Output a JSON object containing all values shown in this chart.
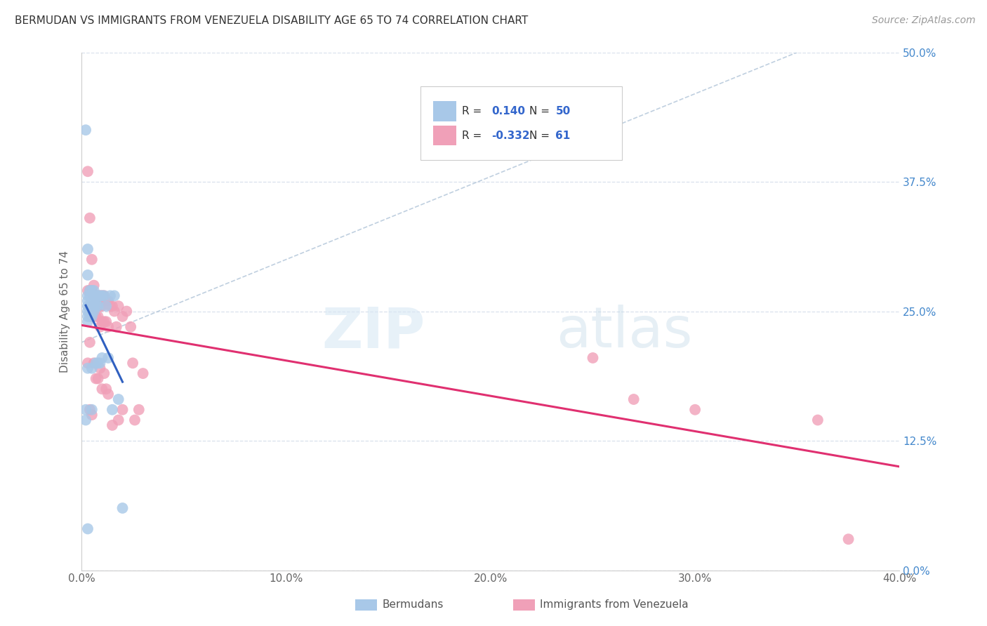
{
  "title": "BERMUDAN VS IMMIGRANTS FROM VENEZUELA DISABILITY AGE 65 TO 74 CORRELATION CHART",
  "source": "Source: ZipAtlas.com",
  "ylabel": "Disability Age 65 to 74",
  "legend_label_blue": "Bermudans",
  "legend_label_pink": "Immigrants from Venezuela",
  "blue_color": "#a8c8e8",
  "pink_color": "#f0a0b8",
  "blue_line_color": "#3060c0",
  "pink_line_color": "#e03070",
  "dashed_line_color": "#b0c4d8",
  "r_blue": "0.140",
  "n_blue": "50",
  "r_pink": "-0.332",
  "n_pink": "61",
  "x_min": 0.0,
  "x_max": 0.4,
  "y_min": 0.0,
  "y_max": 0.5,
  "grid_color": "#d8e0ec",
  "background_color": "#ffffff",
  "blue_scatter_x": [
    0.002,
    0.002,
    0.003,
    0.003,
    0.003,
    0.003,
    0.003,
    0.003,
    0.003,
    0.003,
    0.003,
    0.004,
    0.004,
    0.004,
    0.004,
    0.004,
    0.005,
    0.005,
    0.005,
    0.005,
    0.005,
    0.005,
    0.005,
    0.005,
    0.006,
    0.006,
    0.006,
    0.006,
    0.006,
    0.007,
    0.007,
    0.007,
    0.007,
    0.008,
    0.008,
    0.008,
    0.009,
    0.009,
    0.01,
    0.01,
    0.011,
    0.012,
    0.013,
    0.014,
    0.015,
    0.016,
    0.018,
    0.02,
    0.002,
    0.003
  ],
  "blue_scatter_y": [
    0.425,
    0.145,
    0.31,
    0.285,
    0.265,
    0.26,
    0.255,
    0.25,
    0.245,
    0.24,
    0.195,
    0.27,
    0.265,
    0.255,
    0.25,
    0.245,
    0.27,
    0.265,
    0.26,
    0.255,
    0.25,
    0.245,
    0.195,
    0.155,
    0.27,
    0.265,
    0.26,
    0.255,
    0.25,
    0.265,
    0.26,
    0.255,
    0.2,
    0.265,
    0.255,
    0.2,
    0.265,
    0.2,
    0.265,
    0.205,
    0.265,
    0.255,
    0.205,
    0.265,
    0.155,
    0.265,
    0.165,
    0.06,
    0.155,
    0.04
  ],
  "pink_scatter_x": [
    0.003,
    0.003,
    0.003,
    0.004,
    0.004,
    0.004,
    0.004,
    0.005,
    0.005,
    0.005,
    0.005,
    0.005,
    0.006,
    0.006,
    0.006,
    0.006,
    0.007,
    0.007,
    0.007,
    0.007,
    0.008,
    0.008,
    0.008,
    0.008,
    0.009,
    0.009,
    0.009,
    0.009,
    0.01,
    0.01,
    0.01,
    0.01,
    0.011,
    0.011,
    0.011,
    0.012,
    0.012,
    0.012,
    0.013,
    0.013,
    0.013,
    0.014,
    0.015,
    0.015,
    0.016,
    0.017,
    0.018,
    0.018,
    0.02,
    0.02,
    0.022,
    0.024,
    0.025,
    0.026,
    0.028,
    0.03,
    0.25,
    0.27,
    0.3,
    0.36,
    0.375
  ],
  "pink_scatter_y": [
    0.385,
    0.27,
    0.2,
    0.34,
    0.27,
    0.22,
    0.155,
    0.3,
    0.27,
    0.255,
    0.245,
    0.15,
    0.275,
    0.265,
    0.255,
    0.2,
    0.265,
    0.255,
    0.245,
    0.185,
    0.265,
    0.255,
    0.245,
    0.185,
    0.265,
    0.255,
    0.235,
    0.195,
    0.265,
    0.255,
    0.24,
    0.175,
    0.265,
    0.24,
    0.19,
    0.26,
    0.24,
    0.175,
    0.26,
    0.235,
    0.17,
    0.255,
    0.255,
    0.14,
    0.25,
    0.235,
    0.255,
    0.145,
    0.245,
    0.155,
    0.25,
    0.235,
    0.2,
    0.145,
    0.155,
    0.19,
    0.205,
    0.165,
    0.155,
    0.145,
    0.03
  ]
}
